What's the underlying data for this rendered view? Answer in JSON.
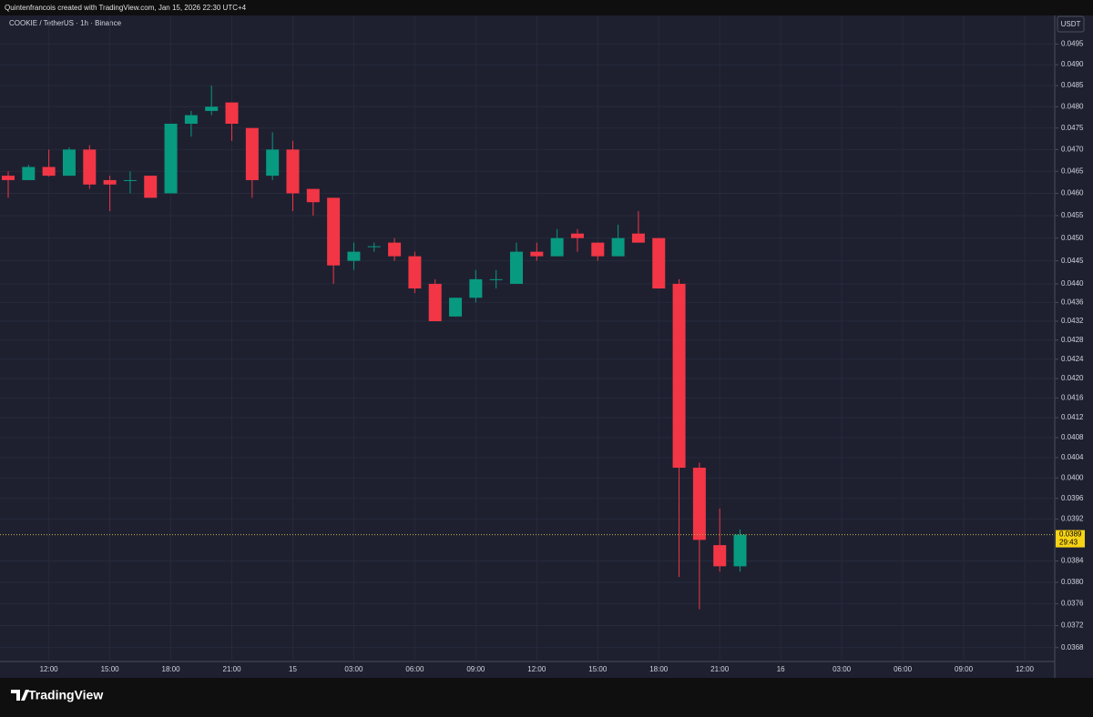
{
  "attribution": "Quintenfrancois created with TradingView.com, Jan 15, 2026 22:30 UTC+4",
  "brand": "TradingView",
  "chart_data": {
    "type": "candlestick",
    "title": "COOKIE / TetherUS · 1h · Binance",
    "currency": "USDT",
    "log": true,
    "grid": true,
    "up_color": "#089981",
    "down_color": "#f23645",
    "categories": [
      null,
      null,
      "12:00",
      null,
      null,
      "15:00",
      null,
      null,
      "18:00",
      null,
      null,
      "21:00",
      null,
      null,
      "15",
      null,
      null,
      "03:00",
      null,
      null,
      "06:00",
      null,
      null,
      "09:00",
      null,
      null,
      "12:00",
      null,
      null,
      "15:00",
      null,
      null,
      "18:00",
      null,
      null,
      "21:00",
      null,
      null,
      "16",
      null,
      null,
      "03:00",
      null,
      null,
      "06:00",
      null,
      null,
      "09:00",
      null,
      null,
      "12:00",
      null
    ],
    "open": [
      0.0464,
      0.0463,
      0.0466,
      0.0464,
      0.047,
      0.0463,
      0.0463,
      0.0464,
      0.046,
      0.0476,
      0.0479,
      0.0481,
      0.0475,
      0.0464,
      0.047,
      0.0461,
      0.0459,
      0.0445,
      0.0448,
      0.0449,
      0.0446,
      0.044,
      0.0433,
      0.0437,
      0.0441,
      0.044,
      0.0447,
      0.0446,
      0.0451,
      0.0449,
      0.0446,
      0.0451,
      0.045,
      0.044,
      0.0402,
      0.0387,
      0.0383,
      null,
      null,
      null,
      null,
      null,
      null,
      null,
      null,
      null,
      null,
      null,
      null,
      null,
      null,
      null
    ],
    "high": [
      0.0465,
      0.04665,
      0.047,
      0.04705,
      0.0471,
      0.0464,
      0.0465,
      0.0464,
      0.0476,
      0.0479,
      0.0485,
      0.0481,
      0.0475,
      0.0474,
      0.0472,
      0.0461,
      0.0459,
      0.0449,
      0.0449,
      0.045,
      0.0447,
      0.0441,
      0.0437,
      0.0443,
      0.0443,
      0.0449,
      0.0449,
      0.0452,
      0.0452,
      0.0449,
      0.0453,
      0.0456,
      0.045,
      0.0441,
      0.0403,
      0.0394,
      0.039,
      null,
      null,
      null,
      null,
      null,
      null,
      null,
      null,
      null,
      null,
      null,
      null,
      null,
      null,
      null
    ],
    "low": [
      0.0459,
      0.0463,
      0.04638,
      0.0464,
      0.0461,
      0.0456,
      0.046,
      0.0459,
      0.046,
      0.0473,
      0.0478,
      0.0472,
      0.0459,
      0.0463,
      0.0456,
      0.0455,
      0.044,
      0.0443,
      0.0447,
      0.0445,
      0.0438,
      0.0432,
      0.0433,
      0.0436,
      0.0439,
      0.044,
      0.0445,
      0.0446,
      0.0447,
      0.0445,
      0.0446,
      0.0449,
      0.0439,
      0.0381,
      0.0375,
      0.0382,
      0.0382,
      null,
      null,
      null,
      null,
      null,
      null,
      null,
      null,
      null,
      null,
      null,
      null,
      null,
      null,
      null
    ],
    "close": [
      0.0463,
      0.0466,
      0.0464,
      0.047,
      0.0462,
      0.0462,
      0.0463,
      0.0459,
      0.0476,
      0.0478,
      0.048,
      0.0476,
      0.0463,
      0.047,
      0.046,
      0.0458,
      0.0444,
      0.0447,
      0.04482,
      0.0446,
      0.0439,
      0.0432,
      0.0437,
      0.0441,
      0.0441,
      0.0447,
      0.0446,
      0.045,
      0.045,
      0.0446,
      0.045,
      0.0449,
      0.0439,
      0.0402,
      0.0388,
      0.0383,
      0.0389,
      null,
      null,
      null,
      null,
      null,
      null,
      null,
      null,
      null,
      null,
      null,
      null,
      null,
      null,
      null
    ],
    "ylim": [
      0.03655,
      0.0502
    ],
    "yticks": [
      0.0495,
      {
        "value": 0.049,
        "label": "0.0490"
      },
      0.0485,
      {
        "value": 0.048,
        "label": "0.0480"
      },
      0.0475,
      {
        "value": 0.047,
        "label": "0.0470"
      },
      0.0465,
      {
        "value": 0.046,
        "label": "0.0460"
      },
      0.0455,
      {
        "value": 0.045,
        "label": "0.0450"
      },
      0.0445,
      {
        "value": 0.044,
        "label": "0.0440"
      },
      0.0436,
      0.0432,
      0.0428,
      0.0424,
      {
        "value": 0.042,
        "label": "0.0420"
      },
      0.0416,
      0.0412,
      0.0408,
      0.0404,
      {
        "value": 0.04,
        "label": "0.0400"
      },
      0.0396,
      0.0392,
      0.0384,
      {
        "value": 0.038,
        "label": "0.0380"
      },
      0.0376,
      0.0372,
      0.0368
    ],
    "last_price": 0.0389,
    "countdown": "29:43"
  }
}
